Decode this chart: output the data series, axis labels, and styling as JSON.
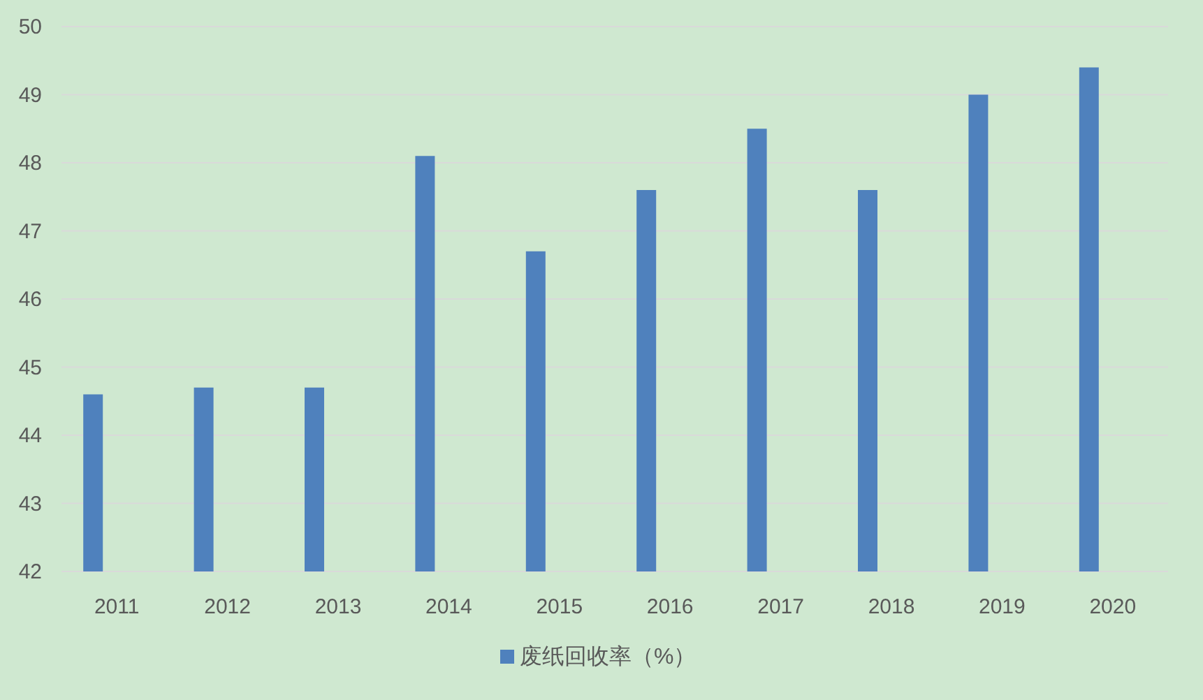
{
  "chart_data": {
    "type": "bar",
    "categories": [
      "2011",
      "2012",
      "2013",
      "2014",
      "2015",
      "2016",
      "2017",
      "2018",
      "2019",
      "2020"
    ],
    "series": [
      {
        "name": "废纸回收率（%）",
        "color": "#4f81bd",
        "values": [
          44.6,
          44.7,
          44.7,
          48.1,
          46.7,
          47.6,
          48.5,
          47.6,
          49.0,
          49.4
        ]
      }
    ],
    "ylim": [
      42,
      50
    ],
    "yticks": [
      42,
      43,
      44,
      45,
      46,
      47,
      48,
      49,
      50
    ],
    "grid": "y",
    "legend": "bottom"
  }
}
